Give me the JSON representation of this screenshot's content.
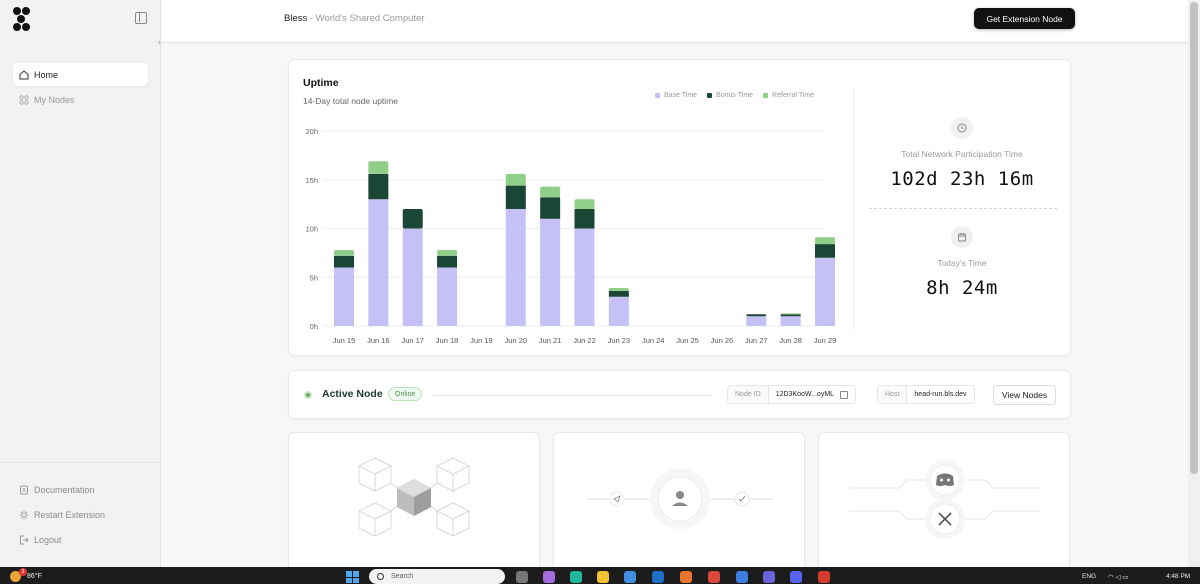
{
  "sidebar": {
    "nav": [
      {
        "label": "Home",
        "icon": "home-icon",
        "active": true
      },
      {
        "label": "My Nodes",
        "icon": "grid-icon",
        "active": false
      }
    ],
    "bottom": [
      {
        "label": "Documentation",
        "icon": "document-icon"
      },
      {
        "label": "Restart Extension",
        "icon": "gear-icon"
      },
      {
        "label": "Logout",
        "icon": "logout-icon"
      }
    ]
  },
  "header": {
    "brand": "Bless",
    "tagline": " - World's Shared Computer",
    "cta_label": "Get Extension Node"
  },
  "uptime": {
    "title": "Uptime",
    "subtitle": "14-Day total node uptime",
    "legend": [
      {
        "label": "Base Time",
        "color": "#c5c0f5"
      },
      {
        "label": "Bonus Time",
        "color": "#1a4735"
      },
      {
        "label": "Referral Time",
        "color": "#8fcf88"
      }
    ],
    "total_label": "Total Network Participation Time",
    "total_value": "102d 23h 16m",
    "today_label": "Today's Time",
    "today_value": "8h 24m"
  },
  "chart_data": {
    "type": "bar",
    "stacked": true,
    "categories": [
      "Jun 15",
      "Jun 16",
      "Jun 17",
      "Jun 18",
      "Jun 19",
      "Jun 20",
      "Jun 21",
      "Jun 22",
      "Jun 23",
      "Jun 24",
      "Jun 25",
      "Jun 26",
      "Jun 27",
      "Jun 28",
      "Jun 29"
    ],
    "series": [
      {
        "name": "Base Time",
        "color": "#c5c0f5",
        "values": [
          6,
          13,
          10,
          6,
          0,
          12,
          11,
          10,
          3,
          0,
          0,
          0,
          1,
          1,
          7
        ]
      },
      {
        "name": "Bonus Time",
        "color": "#1a4735",
        "values": [
          1.2,
          2.6,
          2,
          1.2,
          0,
          2.4,
          2.2,
          2,
          0.6,
          0,
          0,
          0,
          0.2,
          0.2,
          1.4
        ]
      },
      {
        "name": "Referral Time",
        "color": "#8fcf88",
        "values": [
          0.6,
          1.3,
          0,
          0.6,
          0,
          1.2,
          1.1,
          1,
          0.3,
          0,
          0,
          0,
          0,
          0.1,
          0.7
        ]
      }
    ],
    "yticks": [
      "0h",
      "5h",
      "10h",
      "15h",
      "20h"
    ],
    "ylim": [
      0,
      20
    ],
    "grid": true,
    "legend_position": "top-right"
  },
  "active_node": {
    "title": "Active Node",
    "status": "Online",
    "node_id_label": "Node ID",
    "node_id_value": "12D3KooW...oyML",
    "host_label": "Host",
    "host_value": "head-run.bls.dev",
    "view_label": "View Nodes"
  },
  "taskbar": {
    "weather": "86°F",
    "notif": "2",
    "search": "Search",
    "lang": "ENG",
    "time": "4:48 PM"
  }
}
